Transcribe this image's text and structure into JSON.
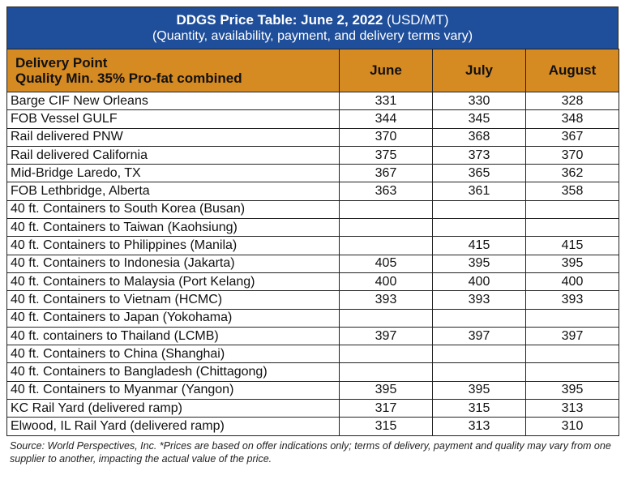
{
  "title": {
    "bold": "DDGS Price Table: June 2, 2022",
    "units": "(USD/MT)",
    "subtitle": "(Quantity, availability, payment, and delivery terms vary)"
  },
  "header": {
    "delivery_point": "Delivery Point",
    "quality": "Quality Min. 35% Pro-fat combined",
    "months": [
      "June",
      "July",
      "August"
    ]
  },
  "rows": [
    {
      "location": "Barge CIF New Orleans",
      "june": "331",
      "july": "330",
      "august": "328"
    },
    {
      "location": "FOB Vessel GULF",
      "june": "344",
      "july": "345",
      "august": "348"
    },
    {
      "location": "Rail delivered PNW",
      "june": "370",
      "july": "368",
      "august": "367"
    },
    {
      "location": "Rail delivered California",
      "june": "375",
      "july": "373",
      "august": "370"
    },
    {
      "location": "Mid-Bridge Laredo, TX",
      "june": "367",
      "july": "365",
      "august": "362"
    },
    {
      "location": "FOB Lethbridge, Alberta",
      "june": "363",
      "july": "361",
      "august": "358"
    },
    {
      "location": "40 ft. Containers to South Korea (Busan)",
      "june": "",
      "july": "",
      "august": ""
    },
    {
      "location": "40 ft. Containers to Taiwan (Kaohsiung)",
      "june": "",
      "july": "",
      "august": ""
    },
    {
      "location": "40 ft. Containers to Philippines (Manila)",
      "june": "",
      "july": "415",
      "august": "415"
    },
    {
      "location": "40 ft. Containers to Indonesia (Jakarta)",
      "june": "405",
      "july": "395",
      "august": "395"
    },
    {
      "location": "40 ft. Containers to Malaysia (Port Kelang)",
      "june": "400",
      "july": "400",
      "august": "400"
    },
    {
      "location": "40 ft. Containers to Vietnam (HCMC)",
      "june": "393",
      "july": "393",
      "august": "393"
    },
    {
      "location": "40 ft. Containers to Japan (Yokohama)",
      "june": "",
      "july": "",
      "august": ""
    },
    {
      "location": "40 ft. containers to Thailand (LCMB)",
      "june": "397",
      "july": "397",
      "august": "397"
    },
    {
      "location": "40 ft. Containers to China (Shanghai)",
      "june": "",
      "july": "",
      "august": ""
    },
    {
      "location": "40 ft. Containers to Bangladesh (Chittagong)",
      "june": "",
      "july": "",
      "august": ""
    },
    {
      "location": "40 ft. Containers to Myanmar (Yangon)",
      "june": "395",
      "july": "395",
      "august": "395"
    },
    {
      "location": "KC Rail Yard (delivered ramp)",
      "june": "317",
      "july": "315",
      "august": "313"
    },
    {
      "location": "Elwood, IL Rail Yard (delivered ramp)",
      "june": "315",
      "july": "313",
      "august": "310"
    }
  ],
  "footnote": "Source: World Perspectives, Inc. *Prices are based on offer indications only; terms of delivery, payment and quality may vary from one supplier to another, impacting the actual value of the price.",
  "colors": {
    "title_bg": "#1f4e9a",
    "header_bg": "#d68a22"
  }
}
